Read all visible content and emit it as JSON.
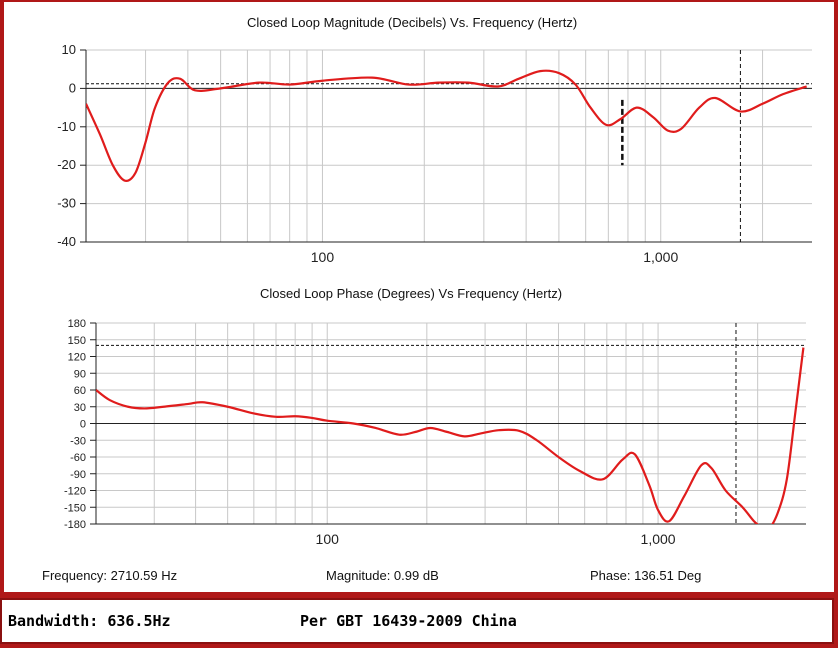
{
  "readout": {
    "frequency": "Frequency: 2710.59 Hz",
    "magnitude": "Magnitude: 0.99 dB",
    "phase": "Phase: 136.51 Deg"
  },
  "status": {
    "bandwidth": "Bandwidth: 636.5Hz",
    "standard": "Per GBT 16439-2009 China"
  },
  "colors": {
    "trace": "#e01c1c",
    "frame": "#b01818",
    "grid": "#c8c8c8"
  },
  "chart_data": [
    {
      "type": "line",
      "title": "Closed Loop Magnitude (Decibels) Vs. Frequency (Hertz)",
      "xscale": "log",
      "xlim": [
        20,
        2800
      ],
      "ylim": [
        -40,
        10
      ],
      "xticks": [
        100,
        1000
      ],
      "xtick_labels": [
        "100",
        "1,000"
      ],
      "yticks": [
        10,
        0,
        -10,
        -20,
        -30,
        -40
      ],
      "ytick_labels": [
        "10",
        "0",
        "-10",
        "-20",
        "-30",
        "-40"
      ],
      "grid": true,
      "reference_line_y": 1.2,
      "cursor_x": 1720,
      "marker": {
        "x": 770,
        "y_range": [
          -3,
          -20
        ]
      },
      "series": [
        {
          "x": [
            20,
            22,
            24,
            26,
            28,
            30,
            32,
            35,
            38,
            42,
            50,
            65,
            80,
            100,
            140,
            180,
            220,
            270,
            330,
            380,
            440,
            500,
            560,
            620,
            690,
            760,
            850,
            950,
            1050,
            1150,
            1300,
            1450,
            1720,
            2000,
            2300,
            2700
          ],
          "y": [
            -4,
            -12,
            -20,
            -24,
            -22,
            -14,
            -5,
            1.5,
            2.5,
            -0.5,
            0,
            1.5,
            1,
            2,
            2.8,
            1,
            1.5,
            1.5,
            0.5,
            2.5,
            4.5,
            4,
            1,
            -5,
            -9.5,
            -8,
            -5,
            -7.5,
            -11,
            -10.5,
            -5,
            -2.5,
            -6,
            -4,
            -1.5,
            0.5
          ]
        }
      ]
    },
    {
      "type": "line",
      "title": "Closed Loop Phase (Degrees) Vs Frequency (Hertz)",
      "xscale": "log",
      "xlim": [
        20,
        2800
      ],
      "ylim": [
        -180,
        180
      ],
      "xticks": [
        100,
        1000
      ],
      "xtick_labels": [
        "100",
        "1,000"
      ],
      "yticks": [
        180,
        150,
        120,
        90,
        60,
        30,
        0,
        -30,
        -60,
        -90,
        -120,
        -150,
        -180
      ],
      "ytick_labels": [
        "180",
        "150",
        "120",
        "90",
        "60",
        "30",
        "0",
        "-30",
        "-60",
        "-90",
        "-120",
        "-150",
        "-180"
      ],
      "grid": true,
      "reference_line_y": 140,
      "cursor_x": 1720,
      "series": [
        {
          "x": [
            20,
            22,
            25,
            28,
            32,
            38,
            42,
            50,
            60,
            70,
            80,
            90,
            100,
            120,
            140,
            165,
            185,
            205,
            230,
            260,
            290,
            330,
            380,
            430,
            500,
            580,
            680,
            780,
            850,
            940,
            1000,
            1080,
            1200,
            1350,
            1450,
            1600,
            1800,
            1950,
            2050,
            2150,
            2300,
            2450,
            2600,
            2750
          ],
          "y": [
            60,
            42,
            30,
            27,
            30,
            35,
            38,
            30,
            18,
            12,
            13,
            10,
            5,
            0,
            -8,
            -20,
            -15,
            -8,
            -15,
            -23,
            -18,
            -12,
            -13,
            -30,
            -60,
            -85,
            -100,
            -65,
            -55,
            -110,
            -155,
            -175,
            -130,
            -75,
            -80,
            -120,
            -150,
            -175,
            -185,
            -190,
            -160,
            -100,
            20,
            136
          ]
        }
      ]
    }
  ]
}
